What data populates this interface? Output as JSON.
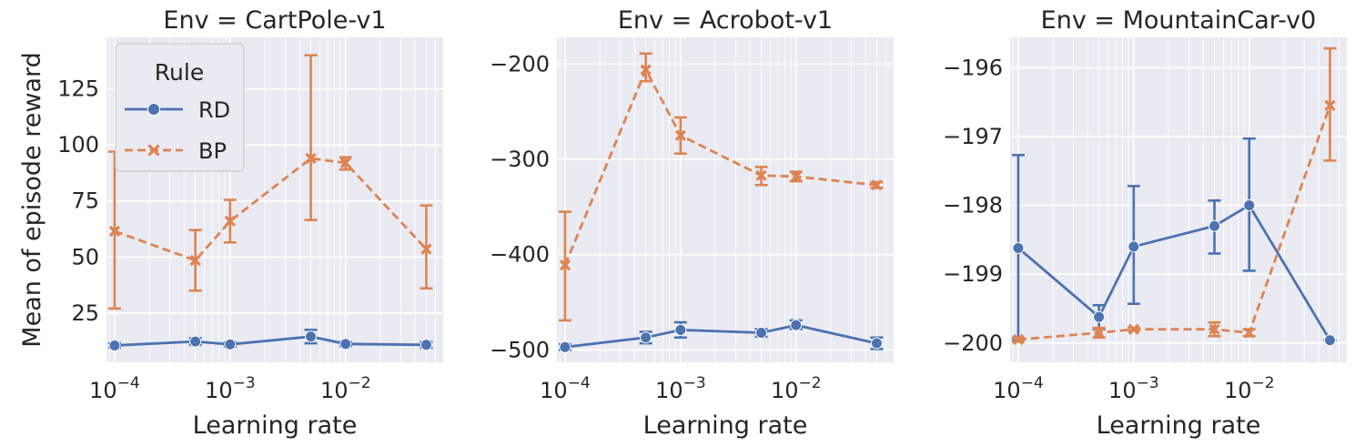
{
  "legend": {
    "title": "Rule",
    "entries": [
      {
        "name": "RD",
        "color": "#4c72b0",
        "dash": "solid",
        "marker": "circle"
      },
      {
        "name": "BP",
        "color": "#dd8452",
        "dash": "dashed",
        "marker": "x"
      }
    ]
  },
  "chart_data": [
    {
      "type": "line",
      "title": "Env = CartPole-v1",
      "xlabel": "Learning rate",
      "ylabel": "Mean of episode reward",
      "xscale": "log",
      "xlim": [
        8.5e-05,
        0.07
      ],
      "ylim": [
        3,
        148
      ],
      "yticks": [
        25,
        50,
        75,
        100,
        125
      ],
      "ytick_labels": [
        "25",
        "50",
        "75",
        "100",
        "125"
      ],
      "xticks": [
        0.0001,
        0.001,
        0.01
      ],
      "xtick_labels": [
        "10",
        "10",
        "10"
      ],
      "xtick_exponents": [
        "−4",
        "−3",
        "−2"
      ],
      "grid": true,
      "legend_position": "top-left",
      "x": [
        0.0001,
        0.0005,
        0.001,
        0.005,
        0.01,
        0.05
      ],
      "series": [
        {
          "name": "RD",
          "y": [
            10.5,
            12.3,
            11,
            14.5,
            11.2,
            10.8
          ],
          "lower": [
            9.5,
            10.8,
            10,
            11.5,
            10.2,
            9.5
          ],
          "upper": [
            11.5,
            13.8,
            12,
            17.5,
            12.2,
            12.1
          ]
        },
        {
          "name": "BP",
          "y": [
            61.5,
            48.5,
            66,
            94,
            92,
            53.5
          ],
          "lower": [
            27,
            35,
            56.5,
            66.5,
            89,
            36
          ],
          "upper": [
            97,
            62,
            75.5,
            140,
            94.5,
            73
          ]
        }
      ]
    },
    {
      "type": "line",
      "title": "Env = Acrobot-v1",
      "xlabel": "Learning rate",
      "ylabel": "",
      "xscale": "log",
      "xlim": [
        8.5e-05,
        0.07
      ],
      "ylim": [
        -513,
        -172
      ],
      "yticks": [
        -500,
        -400,
        -300,
        -200
      ],
      "ytick_labels": [
        "−500",
        "−400",
        "−300",
        "−200"
      ],
      "xticks": [
        0.0001,
        0.001,
        0.01
      ],
      "xtick_labels": [
        "10",
        "10",
        "10"
      ],
      "xtick_exponents": [
        "−4",
        "−3",
        "−2"
      ],
      "grid": true,
      "x": [
        0.0001,
        0.0005,
        0.001,
        0.005,
        0.01,
        0.05
      ],
      "series": [
        {
          "name": "RD",
          "y": [
            -497,
            -487,
            -479,
            -482,
            -474,
            -493
          ],
          "lower": [
            -500,
            -493,
            -487,
            -486,
            -478,
            -499
          ],
          "upper": [
            -494,
            -481,
            -471,
            -478,
            -469,
            -487
          ]
        },
        {
          "name": "BP",
          "y": [
            -411,
            -206,
            -275,
            -317,
            -318,
            -327
          ],
          "lower": [
            -469,
            -218,
            -294,
            -327,
            -323,
            -330
          ],
          "upper": [
            -355,
            -189,
            -256,
            -308,
            -313,
            -324
          ]
        }
      ]
    },
    {
      "type": "line",
      "title": "Env = MountainCar-v0",
      "xlabel": "Learning rate",
      "ylabel": "",
      "xscale": "log",
      "xlim": [
        8.5e-05,
        0.07
      ],
      "ylim": [
        -200.28,
        -195.56
      ],
      "yticks": [
        -200,
        -199,
        -198,
        -197,
        -196
      ],
      "ytick_labels": [
        "−200",
        "−199",
        "−198",
        "−197",
        "−196"
      ],
      "xticks": [
        0.0001,
        0.001,
        0.01
      ],
      "xtick_labels": [
        "10",
        "10",
        "10"
      ],
      "xtick_exponents": [
        "−4",
        "−3",
        "−2"
      ],
      "grid": true,
      "x": [
        0.0001,
        0.0005,
        0.001,
        0.005,
        0.01,
        0.05
      ],
      "series": [
        {
          "name": "RD",
          "y": [
            -198.62,
            -199.62,
            -198.6,
            -198.3,
            -198,
            -199.96
          ],
          "lower": [
            -199.96,
            -199.8,
            -199.43,
            -198.7,
            -198.95,
            -199.96
          ],
          "upper": [
            -197.27,
            -199.45,
            -197.72,
            -197.93,
            -197.03,
            -199.96
          ]
        },
        {
          "name": "BP",
          "y": [
            -199.95,
            -199.85,
            -199.8,
            -199.8,
            -199.85,
            -196.55
          ],
          "lower": [
            -199.98,
            -199.92,
            -199.82,
            -199.9,
            -199.9,
            -197.35
          ],
          "upper": [
            -199.92,
            -199.78,
            -199.78,
            -199.7,
            -199.8,
            -195.72
          ]
        }
      ]
    }
  ]
}
